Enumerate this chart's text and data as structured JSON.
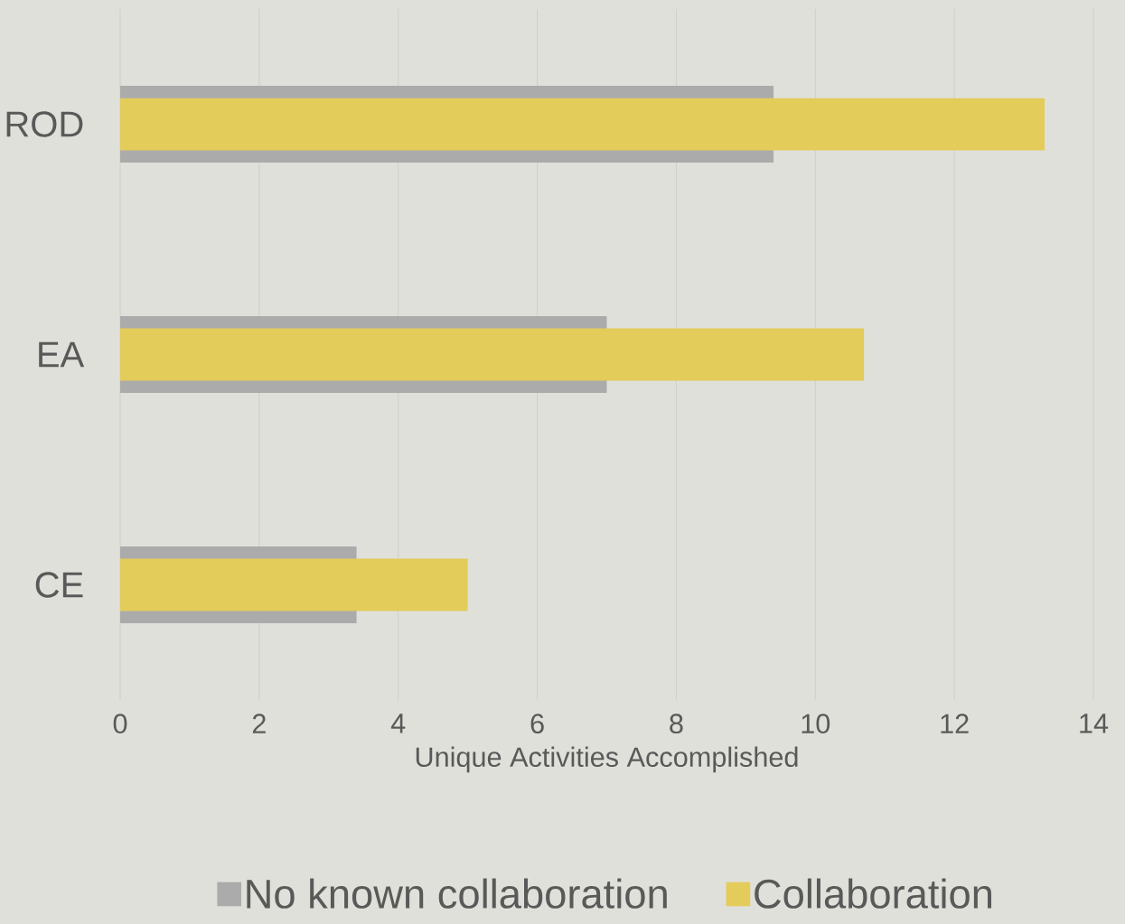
{
  "chart_data": {
    "type": "bar",
    "orientation": "horizontal",
    "categories": [
      "ROD",
      "EA",
      "CE"
    ],
    "series": [
      {
        "name": "No known collaboration",
        "color": "#ababab",
        "values": [
          9.4,
          7.0,
          3.4
        ]
      },
      {
        "name": "Collaboration",
        "color": "#e3cc5a",
        "values": [
          13.3,
          10.7,
          5.0
        ]
      }
    ],
    "xlim": [
      0,
      14
    ],
    "xticks": [
      0,
      2,
      4,
      6,
      8,
      10,
      12,
      14
    ],
    "xlabel": "Unique Activities Accomplished",
    "grid": "x",
    "legend": "bottom"
  }
}
